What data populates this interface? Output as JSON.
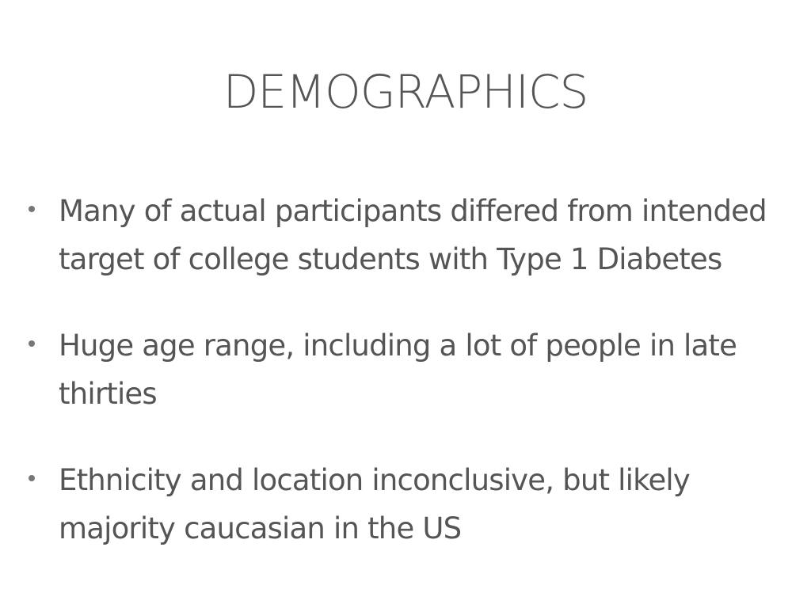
{
  "slide": {
    "title": "DEMOGRAPHICS",
    "bullets": [
      "Many of actual participants differed from intended target of college students with Type 1 Diabetes",
      "Huge age range, including a lot of people in late thirties",
      "Ethnicity and location inconclusive, but likely majority caucasian in the US"
    ]
  }
}
